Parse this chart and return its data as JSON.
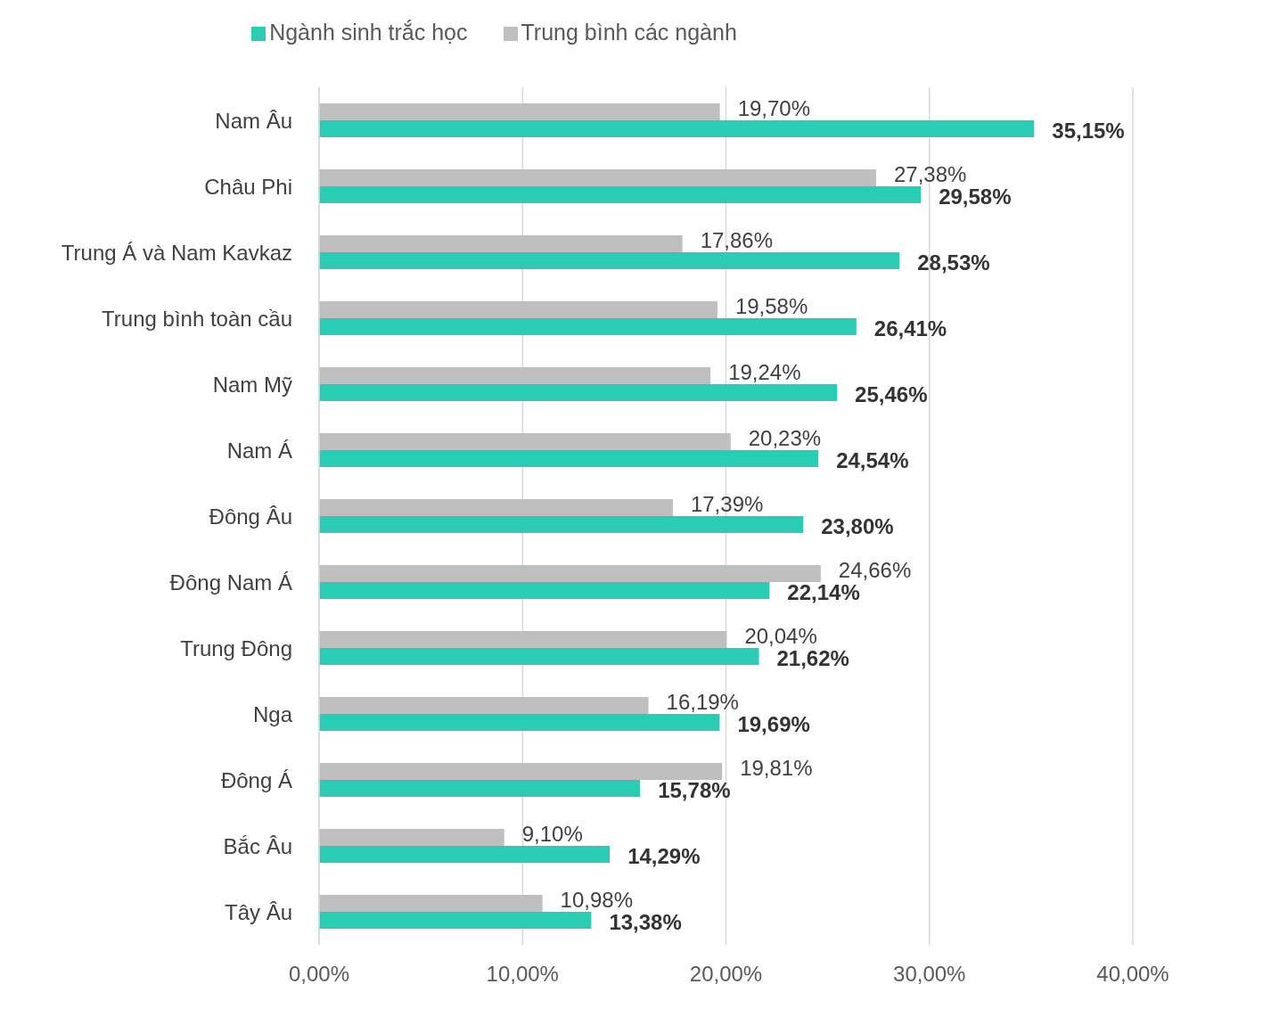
{
  "chart_data": {
    "type": "bar",
    "orientation": "horizontal",
    "categories": [
      "Nam Âu",
      "Châu Phi",
      "Trung Á và Nam Kavkaz",
      "Trung bình toàn cầu",
      "Nam Mỹ",
      "Nam Á",
      "Đông Âu",
      "Đông Nam Á",
      "Trung Đông",
      "Nga",
      "Đông Á",
      "Bắc Âu",
      "Tây Âu"
    ],
    "series": [
      {
        "name": "Trung bình các ngành",
        "color": "#bfbfbf",
        "values": [
          19.7,
          27.38,
          17.86,
          19.58,
          19.24,
          20.23,
          17.39,
          24.66,
          20.04,
          16.19,
          19.81,
          9.1,
          10.98
        ],
        "value_labels": [
          "19,70%",
          "27,38%",
          "17,86%",
          "19,58%",
          "19,24%",
          "20,23%",
          "17,39%",
          "24,66%",
          "20,04%",
          "16,19%",
          "19,81%",
          "9,10%",
          "10,98%"
        ]
      },
      {
        "name": "Ngành sinh trắc học",
        "color": "#2acdb3",
        "values": [
          35.15,
          29.58,
          28.53,
          26.41,
          25.46,
          24.54,
          23.8,
          22.14,
          21.62,
          19.69,
          15.78,
          14.29,
          13.38
        ],
        "value_labels": [
          "35,15%",
          "29,58%",
          "28,53%",
          "26,41%",
          "25,46%",
          "24,54%",
          "23,80%",
          "22,14%",
          "21,62%",
          "19,69%",
          "15,78%",
          "14,29%",
          "13,38%"
        ]
      }
    ],
    "xlim": [
      0,
      40
    ],
    "xticks": [
      {
        "value": 0,
        "label": "0,00%"
      },
      {
        "value": 10,
        "label": "10,00%"
      },
      {
        "value": 20,
        "label": "20,00%"
      },
      {
        "value": 30,
        "label": "30,00%"
      },
      {
        "value": 40,
        "label": "40,00%"
      }
    ],
    "grid": "x",
    "legend": "top"
  }
}
